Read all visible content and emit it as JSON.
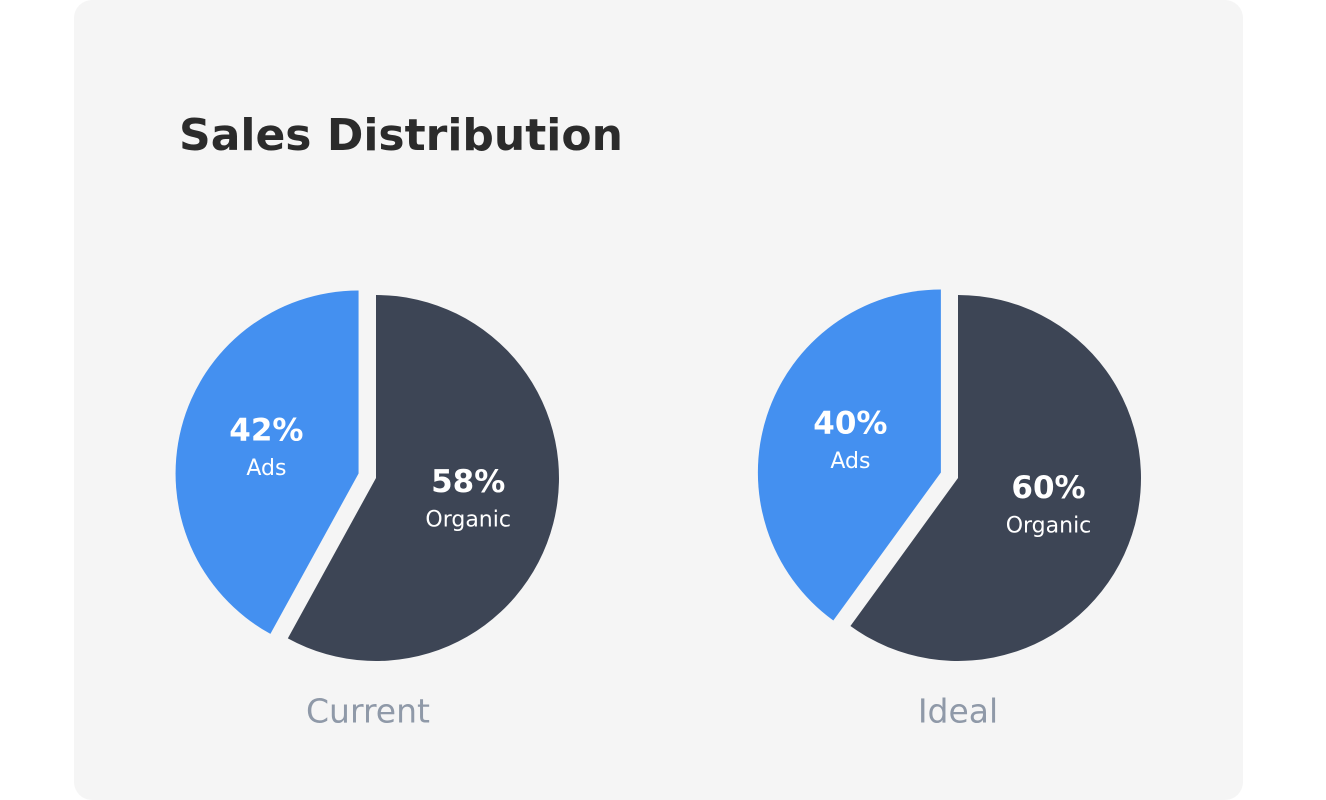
{
  "title": "Sales Distribution",
  "chart_data": [
    {
      "type": "pie",
      "title": "Current",
      "categories": [
        "Ads",
        "Organic"
      ],
      "values": [
        42,
        58
      ],
      "value_labels": [
        "42%",
        "58%"
      ],
      "colors": [
        "#4490f0",
        "#3d4555"
      ],
      "explode": "Ads"
    },
    {
      "type": "pie",
      "title": "Ideal",
      "categories": [
        "Ads",
        "Organic"
      ],
      "values": [
        40,
        60
      ],
      "value_labels": [
        "40%",
        "60%"
      ],
      "colors": [
        "#4490f0",
        "#3d4555"
      ],
      "explode": "Ads"
    }
  ]
}
